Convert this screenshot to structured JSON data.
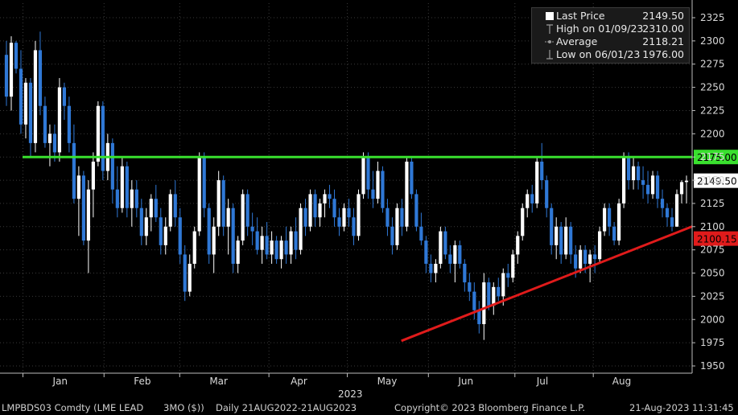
{
  "chart_data": {
    "type": "candlestick",
    "y_ticks": [
      1950,
      1975,
      2000,
      2025,
      2050,
      2075,
      2100,
      2125,
      2150,
      2175,
      2200,
      2225,
      2250,
      2275,
      2300,
      2325
    ],
    "y_tick_labels": [
      "1950",
      "1975",
      "2000",
      "2025",
      "2050",
      "2075",
      "2100",
      "2125",
      "2150",
      "2175",
      "2200",
      "2225",
      "2250",
      "2275",
      "2300",
      "2325"
    ],
    "x_months": [
      "Jan",
      "Feb",
      "Mar",
      "Apr",
      "May",
      "Jun",
      "Jul",
      "Aug"
    ],
    "x_year": "2023",
    "grid": true,
    "up_color": "#ffffff",
    "down_color": "#2f78d6",
    "resistance": {
      "value": 2175.0,
      "label": "2175.00",
      "color": "#39e02e"
    },
    "last_price_tag": {
      "value": 2149.5,
      "label": "2149.50"
    },
    "support_trend": {
      "start_date": "2023-05-22",
      "start_value": 1977,
      "end_date": "2023-08-21",
      "end_value": 2100.15,
      "label": "2100.15",
      "color": "#e01b1b"
    },
    "ohlc": [
      [
        2285,
        2300,
        2230,
        2240
      ],
      [
        2240,
        2305,
        2225,
        2298
      ],
      [
        2298,
        2300,
        2265,
        2270
      ],
      [
        2270,
        2290,
        2200,
        2210
      ],
      [
        2210,
        2260,
        2195,
        2255
      ],
      [
        2255,
        2260,
        2175,
        2190
      ],
      [
        2190,
        2300,
        2180,
        2290
      ],
      [
        2290,
        2310,
        2220,
        2230
      ],
      [
        2230,
        2240,
        2185,
        2190
      ],
      [
        2190,
        2210,
        2165,
        2200
      ],
      [
        2200,
        2210,
        2170,
        2180
      ],
      [
        2180,
        2260,
        2170,
        2250
      ],
      [
        2250,
        2255,
        2215,
        2230
      ],
      [
        2230,
        2240,
        2180,
        2190
      ],
      [
        2190,
        2210,
        2125,
        2130
      ],
      [
        2130,
        2165,
        2090,
        2155
      ],
      [
        2155,
        2160,
        2080,
        2085
      ],
      [
        2085,
        2150,
        2050,
        2140
      ],
      [
        2140,
        2180,
        2110,
        2170
      ],
      [
        2170,
        2235,
        2165,
        2230
      ],
      [
        2230,
        2235,
        2150,
        2160
      ],
      [
        2160,
        2200,
        2150,
        2190
      ],
      [
        2190,
        2195,
        2125,
        2140
      ],
      [
        2140,
        2165,
        2110,
        2120
      ],
      [
        2120,
        2175,
        2115,
        2165
      ],
      [
        2165,
        2170,
        2110,
        2120
      ],
      [
        2120,
        2150,
        2100,
        2140
      ],
      [
        2140,
        2150,
        2110,
        2120
      ],
      [
        2120,
        2130,
        2080,
        2090
      ],
      [
        2090,
        2120,
        2080,
        2110
      ],
      [
        2110,
        2135,
        2095,
        2130
      ],
      [
        2130,
        2145,
        2105,
        2110
      ],
      [
        2110,
        2120,
        2070,
        2080
      ],
      [
        2080,
        2110,
        2070,
        2100
      ],
      [
        2100,
        2140,
        2095,
        2135
      ],
      [
        2135,
        2150,
        2100,
        2110
      ],
      [
        2110,
        2120,
        2060,
        2070
      ],
      [
        2070,
        2080,
        2020,
        2030
      ],
      [
        2030,
        2070,
        2025,
        2060
      ],
      [
        2060,
        2100,
        2055,
        2095
      ],
      [
        2095,
        2180,
        2090,
        2175
      ],
      [
        2175,
        2180,
        2110,
        2120
      ],
      [
        2120,
        2125,
        2060,
        2070
      ],
      [
        2070,
        2110,
        2050,
        2100
      ],
      [
        2100,
        2160,
        2090,
        2150
      ],
      [
        2150,
        2155,
        2090,
        2100
      ],
      [
        2100,
        2130,
        2070,
        2120
      ],
      [
        2120,
        2125,
        2050,
        2060
      ],
      [
        2060,
        2090,
        2050,
        2085
      ],
      [
        2085,
        2140,
        2080,
        2135
      ],
      [
        2135,
        2140,
        2090,
        2100
      ],
      [
        2100,
        2115,
        2080,
        2095
      ],
      [
        2095,
        2110,
        2070,
        2075
      ],
      [
        2075,
        2100,
        2060,
        2090
      ],
      [
        2090,
        2105,
        2065,
        2070
      ],
      [
        2070,
        2095,
        2060,
        2085
      ],
      [
        2085,
        2090,
        2060,
        2065
      ],
      [
        2065,
        2090,
        2055,
        2085
      ],
      [
        2085,
        2100,
        2060,
        2070
      ],
      [
        2070,
        2100,
        2060,
        2095
      ],
      [
        2095,
        2110,
        2065,
        2075
      ],
      [
        2075,
        2125,
        2070,
        2120
      ],
      [
        2120,
        2130,
        2090,
        2100
      ],
      [
        2100,
        2140,
        2095,
        2135
      ],
      [
        2135,
        2140,
        2100,
        2110
      ],
      [
        2110,
        2130,
        2100,
        2125
      ],
      [
        2125,
        2140,
        2110,
        2135
      ],
      [
        2135,
        2145,
        2120,
        2130
      ],
      [
        2130,
        2140,
        2100,
        2110
      ],
      [
        2110,
        2120,
        2090,
        2100
      ],
      [
        2100,
        2125,
        2095,
        2120
      ],
      [
        2120,
        2130,
        2100,
        2110
      ],
      [
        2110,
        2120,
        2080,
        2090
      ],
      [
        2090,
        2140,
        2085,
        2135
      ],
      [
        2135,
        2180,
        2130,
        2175
      ],
      [
        2175,
        2180,
        2130,
        2140
      ],
      [
        2140,
        2160,
        2120,
        2130
      ],
      [
        2130,
        2170,
        2125,
        2160
      ],
      [
        2160,
        2165,
        2115,
        2120
      ],
      [
        2120,
        2130,
        2090,
        2100
      ],
      [
        2100,
        2110,
        2070,
        2080
      ],
      [
        2080,
        2125,
        2075,
        2120
      ],
      [
        2120,
        2130,
        2090,
        2100
      ],
      [
        2100,
        2175,
        2095,
        2170
      ],
      [
        2170,
        2175,
        2130,
        2135
      ],
      [
        2135,
        2140,
        2095,
        2100
      ],
      [
        2100,
        2115,
        2080,
        2085
      ],
      [
        2085,
        2090,
        2050,
        2060
      ],
      [
        2060,
        2070,
        2040,
        2050
      ],
      [
        2050,
        2065,
        2040,
        2060
      ],
      [
        2060,
        2100,
        2055,
        2095
      ],
      [
        2095,
        2100,
        2065,
        2070
      ],
      [
        2070,
        2080,
        2050,
        2060
      ],
      [
        2060,
        2085,
        2040,
        2080
      ],
      [
        2080,
        2085,
        2055,
        2060
      ],
      [
        2060,
        2065,
        2030,
        2040
      ],
      [
        2040,
        2050,
        2020,
        2030
      ],
      [
        2030,
        2040,
        2000,
        2010
      ],
      [
        2010,
        2020,
        1985,
        1995
      ],
      [
        1995,
        2050,
        1978,
        2040
      ],
      [
        2040,
        2045,
        2010,
        2015
      ],
      [
        2015,
        2040,
        2005,
        2035
      ],
      [
        2035,
        2045,
        2020,
        2025
      ],
      [
        2025,
        2055,
        2015,
        2050
      ],
      [
        2050,
        2060,
        2035,
        2045
      ],
      [
        2045,
        2075,
        2040,
        2070
      ],
      [
        2070,
        2095,
        2060,
        2090
      ],
      [
        2090,
        2125,
        2085,
        2120
      ],
      [
        2120,
        2140,
        2110,
        2135
      ],
      [
        2135,
        2145,
        2115,
        2125
      ],
      [
        2125,
        2175,
        2120,
        2170
      ],
      [
        2170,
        2190,
        2140,
        2150
      ],
      [
        2150,
        2155,
        2110,
        2120
      ],
      [
        2120,
        2125,
        2070,
        2080
      ],
      [
        2080,
        2110,
        2065,
        2100
      ],
      [
        2100,
        2105,
        2060,
        2070
      ],
      [
        2070,
        2110,
        2065,
        2100
      ],
      [
        2100,
        2105,
        2060,
        2070
      ],
      [
        2070,
        2080,
        2045,
        2055
      ],
      [
        2055,
        2080,
        2050,
        2075
      ],
      [
        2075,
        2080,
        2050,
        2060
      ],
      [
        2060,
        2075,
        2040,
        2070
      ],
      [
        2070,
        2080,
        2050,
        2065
      ],
      [
        2065,
        2100,
        2060,
        2095
      ],
      [
        2095,
        2125,
        2090,
        2120
      ],
      [
        2120,
        2125,
        2090,
        2100
      ],
      [
        2100,
        2105,
        2080,
        2085
      ],
      [
        2085,
        2130,
        2080,
        2125
      ],
      [
        2125,
        2180,
        2120,
        2175
      ],
      [
        2175,
        2180,
        2140,
        2150
      ],
      [
        2150,
        2175,
        2140,
        2165
      ],
      [
        2165,
        2170,
        2140,
        2150
      ],
      [
        2150,
        2165,
        2130,
        2145
      ],
      [
        2145,
        2160,
        2125,
        2135
      ],
      [
        2135,
        2160,
        2130,
        2155
      ],
      [
        2155,
        2160,
        2120,
        2130
      ],
      [
        2130,
        2140,
        2110,
        2120
      ],
      [
        2120,
        2125,
        2100,
        2110
      ],
      [
        2110,
        2120,
        2095,
        2100
      ],
      [
        2100,
        2140,
        2100,
        2135
      ],
      [
        2135,
        2150,
        2125,
        2148
      ],
      [
        2148,
        2155,
        2125,
        2149.5
      ]
    ]
  },
  "legend": {
    "rows": [
      {
        "label": "Last Price",
        "value": "2149.50",
        "icon": "white-square-icon"
      },
      {
        "label": "High on 01/09/23",
        "value": "2310.00",
        "icon": "high-marker-icon"
      },
      {
        "label": "Average",
        "value": "2118.21",
        "icon": "average-marker-icon"
      },
      {
        "label": "Low on 06/01/23",
        "value": "1976.00",
        "icon": "low-marker-icon"
      }
    ]
  },
  "footer": {
    "ticker": "LMPBDS03 Comdty (LME LEAD",
    "tenor": "3MO ($))",
    "range": "Daily 21AUG2022-21AUG2023",
    "copyright": "Copyright© 2023 Bloomberg Finance L.P.",
    "timestamp": "21-Aug-2023 11:31:45"
  }
}
